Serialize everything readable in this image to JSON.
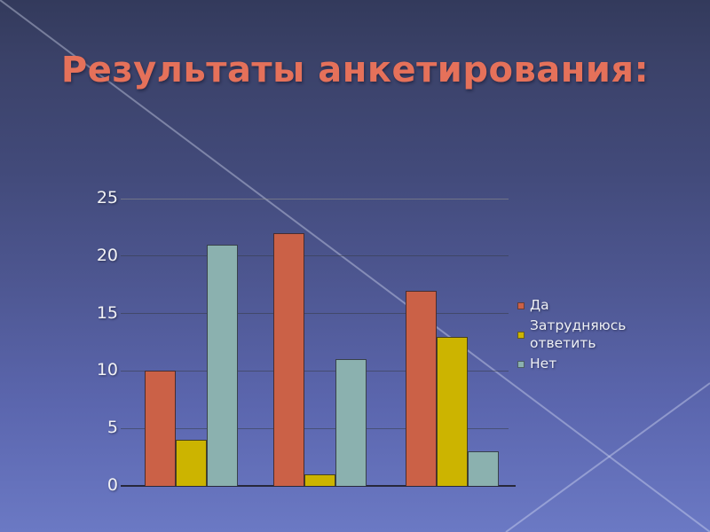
{
  "slide": {
    "title": "Результаты анкетирования:",
    "title_color": "#e5715a",
    "background": {
      "top_color": "#333a5c",
      "bottom_color": "#6b79c4",
      "diagonal_line_color": "#cdd5f0"
    }
  },
  "chart_data": {
    "type": "bar",
    "categories": [
      "",
      "",
      ""
    ],
    "series": [
      {
        "name": "Да",
        "color": "#cb6147",
        "values": [
          10,
          22,
          17
        ]
      },
      {
        "name": "Затрудняюсь ответить",
        "color": "#ccb400",
        "values": [
          4,
          1,
          13
        ]
      },
      {
        "name": "Нет",
        "color": "#8bb1af",
        "values": [
          21,
          11,
          3
        ]
      }
    ],
    "title": "",
    "xlabel": "",
    "ylabel": "",
    "ylim": [
      0,
      25
    ],
    "yticks": [
      0,
      5,
      10,
      15,
      20,
      25
    ],
    "grid": true,
    "legend_position": "right",
    "axis_text_color": "#f1f1f4"
  }
}
